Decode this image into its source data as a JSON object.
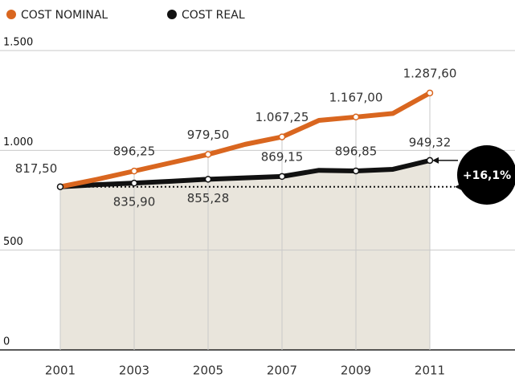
{
  "chart_data": {
    "type": "line",
    "x": [
      2001,
      2002,
      2003,
      2004,
      2005,
      2006,
      2007,
      2008,
      2009,
      2010,
      2011
    ],
    "xlim": [
      2001,
      2011
    ],
    "xticks": [
      2001,
      2003,
      2005,
      2007,
      2009,
      2011
    ],
    "ylim": [
      0,
      1500
    ],
    "yticks": [
      0,
      500,
      {
        "value": 1000,
        "label": "1.000"
      },
      {
        "value": 1500,
        "label": "1.500"
      }
    ],
    "grid": true,
    "series": [
      {
        "name": "COST NOMINAL",
        "color": "#d9661f",
        "values": [
          817.5,
          855,
          896.25,
          938,
          979.5,
          1030,
          1067.25,
          1150,
          1167.0,
          1185,
          1287.6
        ],
        "value_labels": [
          "817,50",
          null,
          "896,25",
          null,
          "979,50",
          null,
          "1.067,25",
          null,
          "1.167,00",
          null,
          "1.287,60"
        ]
      },
      {
        "name": "COST REAL",
        "color": "#111111",
        "values": [
          817.5,
          828,
          835.9,
          845,
          855.28,
          862,
          869.15,
          900,
          896.85,
          905,
          949.32
        ],
        "value_labels": [
          null,
          null,
          "835,90",
          null,
          "855,28",
          null,
          "869,15",
          null,
          "896,85",
          null,
          "949,32"
        ]
      }
    ],
    "annotation": "+16,1%"
  }
}
